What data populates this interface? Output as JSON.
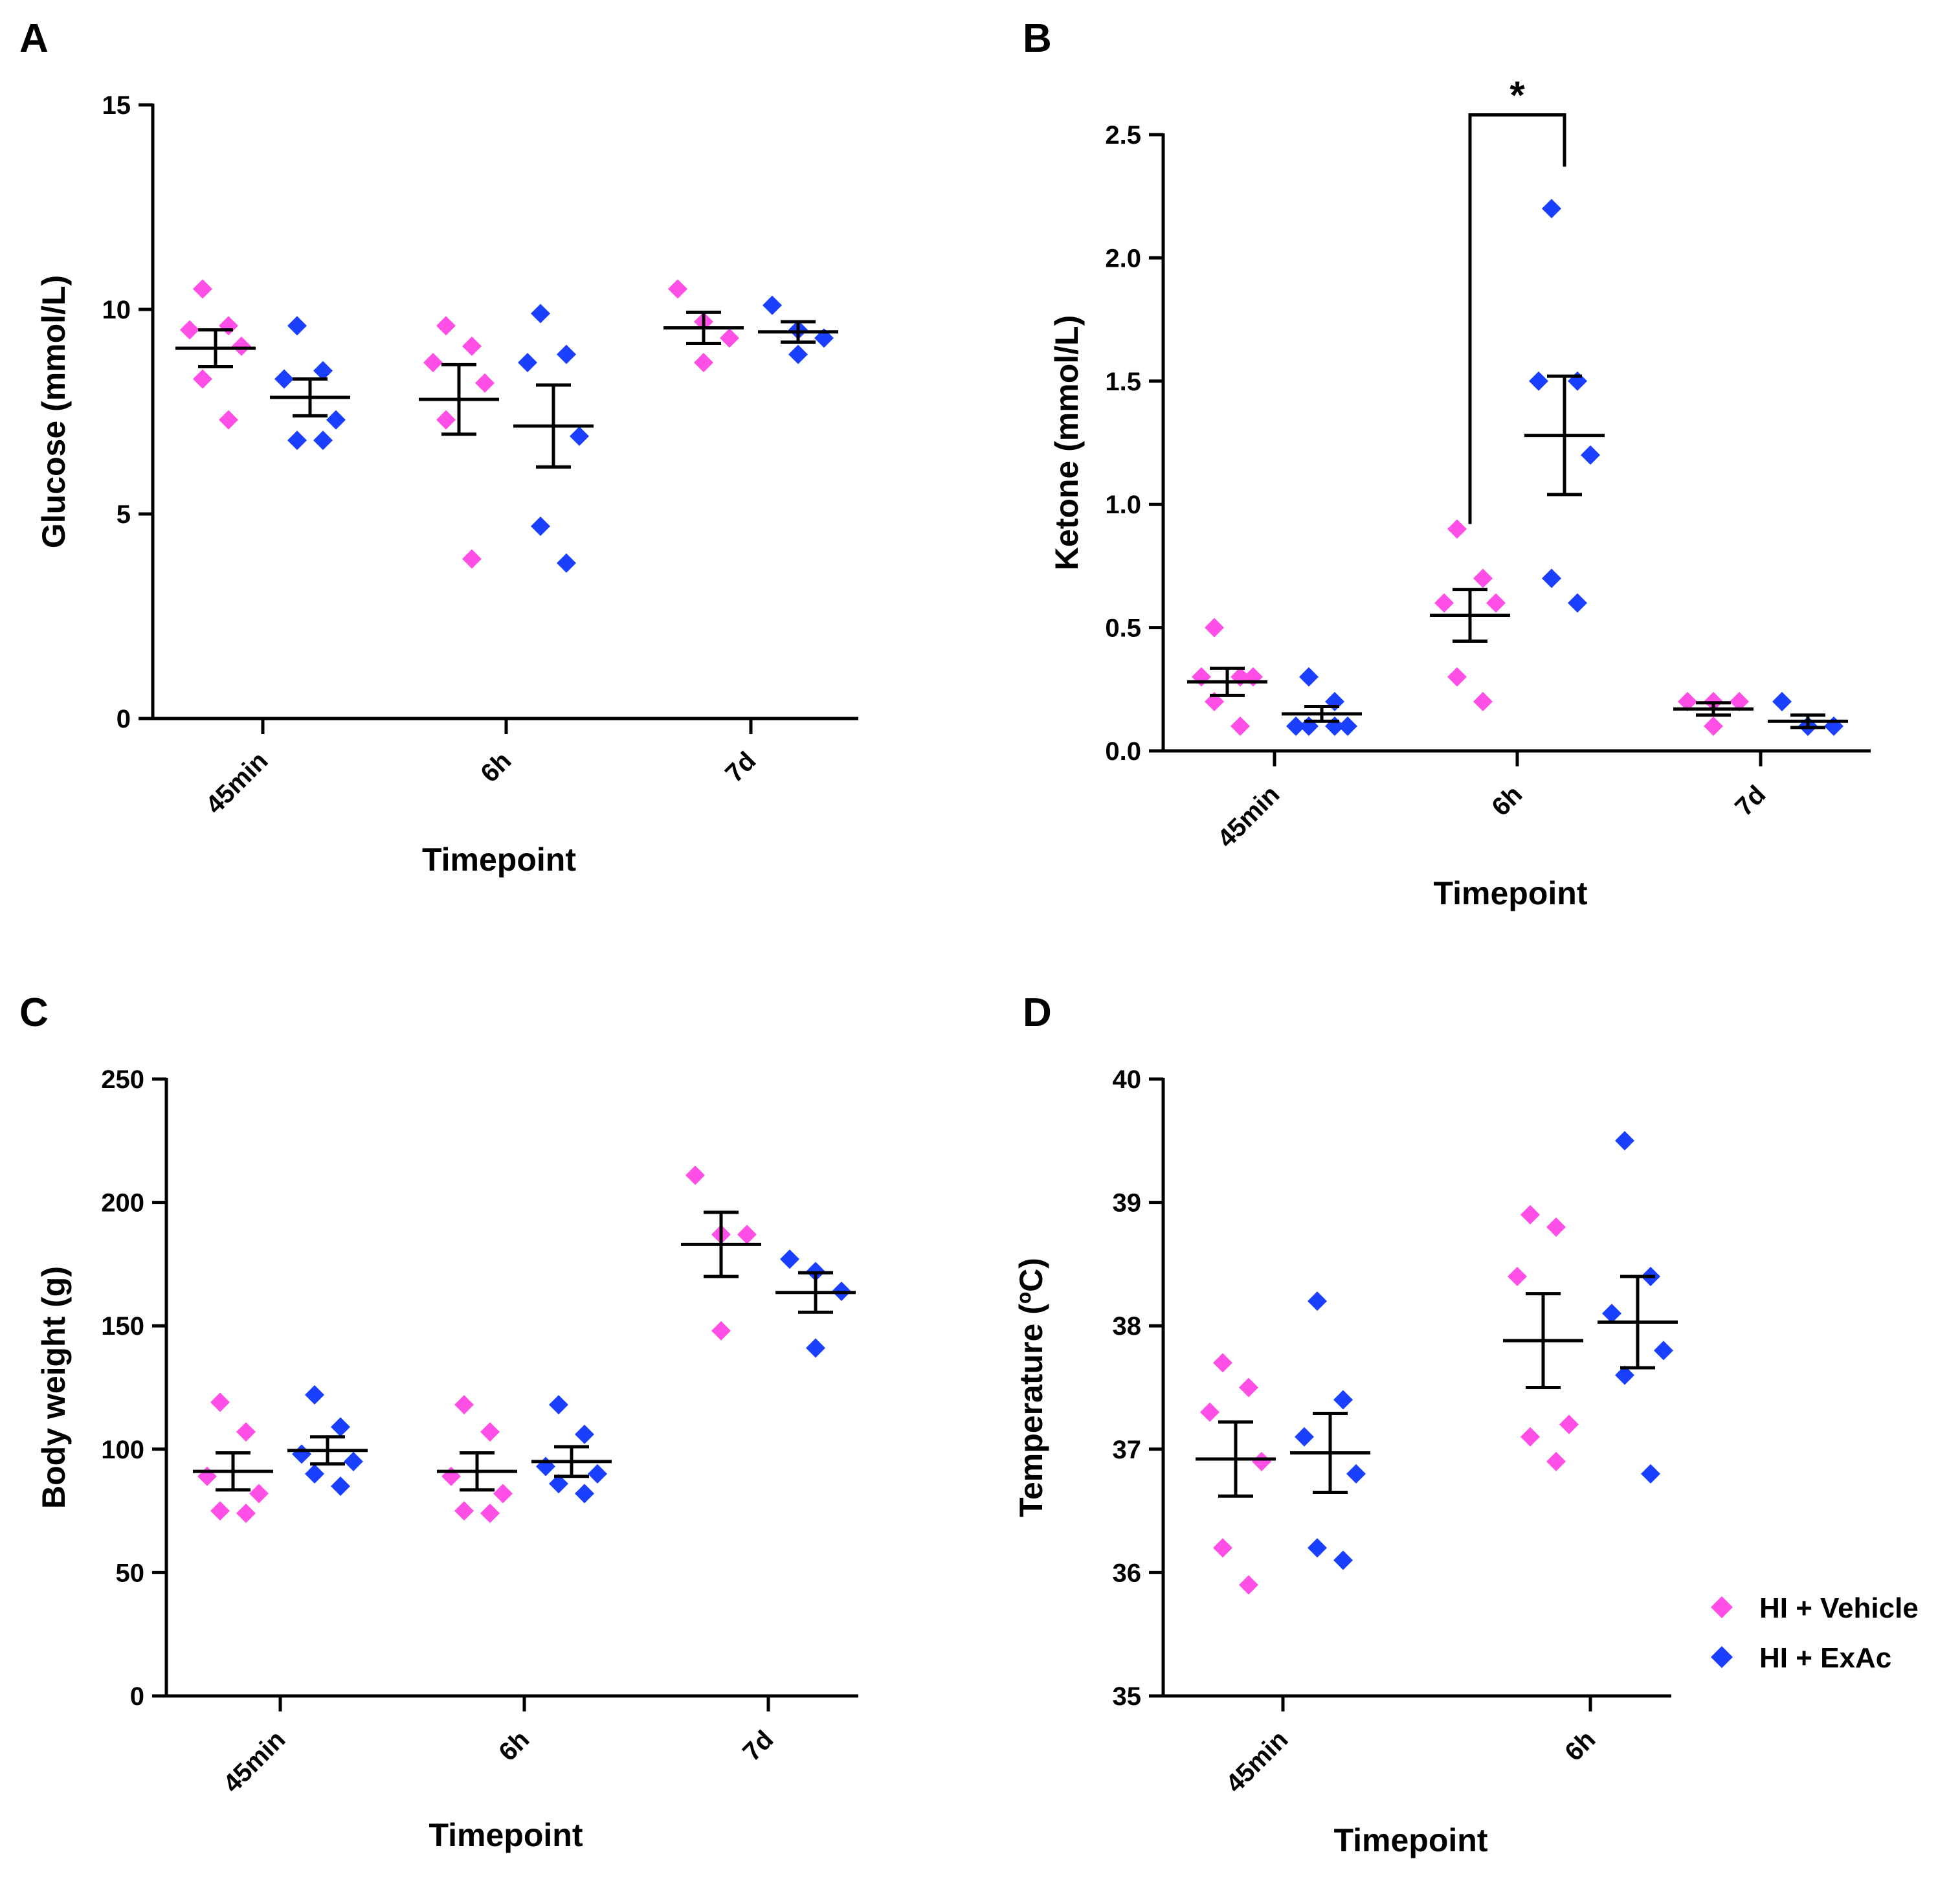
{
  "colors": {
    "vehicle": "#ff4fe6",
    "exac": "#1a3fff",
    "axis": "#000000"
  },
  "legend": {
    "items": [
      {
        "label": "HI + Vehicle",
        "color": "#ff4fe6",
        "icon": "diamond-icon"
      },
      {
        "label": "HI + ExAc",
        "color": "#1a3fff",
        "icon": "diamond-icon"
      }
    ]
  },
  "chart_data": [
    {
      "id": "A",
      "panel_label": "A",
      "type": "scatter",
      "xlabel": "Timepoint",
      "ylabel": "Glucose (mmol/L)",
      "categories": [
        "45min",
        "6h",
        "7d"
      ],
      "ylim": [
        0,
        15
      ],
      "yticks": [
        0,
        5,
        10,
        15
      ],
      "tick_labels": [
        "0",
        "5",
        "10",
        "15"
      ],
      "series": [
        {
          "name": "HI + Vehicle",
          "color": "#ff4fe6",
          "groups": [
            {
              "category": "45min",
              "points": [
                10.5,
                9.6,
                9.5,
                9.1,
                8.3,
                7.3
              ],
              "mean": 9.05,
              "sem": 0.45
            },
            {
              "category": "6h",
              "points": [
                9.6,
                9.1,
                8.7,
                8.2,
                7.3,
                3.9
              ],
              "mean": 7.8,
              "sem": 0.85
            },
            {
              "category": "7d",
              "points": [
                10.5,
                9.7,
                9.3,
                8.7
              ],
              "mean": 9.55,
              "sem": 0.38
            }
          ]
        },
        {
          "name": "HI + ExAc",
          "color": "#1a3fff",
          "groups": [
            {
              "category": "45min",
              "points": [
                9.6,
                8.5,
                8.3,
                7.3,
                6.8,
                6.8
              ],
              "mean": 7.85,
              "sem": 0.45
            },
            {
              "category": "6h",
              "points": [
                9.9,
                8.9,
                8.7,
                6.9,
                4.7,
                3.8
              ],
              "mean": 7.15,
              "sem": 1.0
            },
            {
              "category": "7d",
              "points": [
                10.1,
                9.5,
                9.3,
                8.9
              ],
              "mean": 9.45,
              "sem": 0.25
            }
          ]
        }
      ]
    },
    {
      "id": "B",
      "panel_label": "B",
      "type": "scatter",
      "xlabel": "Timepoint",
      "ylabel": "Ketone (mmol/L)",
      "categories": [
        "45min",
        "6h",
        "7d"
      ],
      "ylim": [
        0,
        2.5
      ],
      "yticks": [
        0,
        0.5,
        1.0,
        1.5,
        2.0,
        2.5
      ],
      "tick_labels": [
        "0.0",
        "0.5",
        "1.0",
        "1.5",
        "2.0",
        "2.5"
      ],
      "significance": {
        "label": "*",
        "category": "6h"
      },
      "series": [
        {
          "name": "HI + Vehicle",
          "color": "#ff4fe6",
          "groups": [
            {
              "category": "45min",
              "points": [
                0.5,
                0.3,
                0.3,
                0.3,
                0.2,
                0.1
              ],
              "mean": 0.28,
              "sem": 0.055
            },
            {
              "category": "6h",
              "points": [
                0.9,
                0.7,
                0.6,
                0.6,
                0.3,
                0.2
              ],
              "mean": 0.55,
              "sem": 0.105
            },
            {
              "category": "7d",
              "points": [
                0.2,
                0.2,
                0.2,
                0.1
              ],
              "mean": 0.17,
              "sem": 0.025
            }
          ]
        },
        {
          "name": "HI + ExAc",
          "color": "#1a3fff",
          "groups": [
            {
              "category": "45min",
              "points": [
                0.3,
                0.2,
                0.1,
                0.1,
                0.1,
                0.1
              ],
              "mean": 0.15,
              "sem": 0.03
            },
            {
              "category": "6h",
              "points": [
                2.2,
                1.5,
                1.5,
                1.2,
                0.7,
                0.6
              ],
              "mean": 1.28,
              "sem": 0.24
            },
            {
              "category": "7d",
              "points": [
                0.2,
                0.1,
                0.1,
                0.1
              ],
              "mean": 0.12,
              "sem": 0.025
            }
          ]
        }
      ]
    },
    {
      "id": "C",
      "panel_label": "C",
      "type": "scatter",
      "xlabel": "Timepoint",
      "ylabel": "Body weight (g)",
      "categories": [
        "45min",
        "6h",
        "7d"
      ],
      "ylim": [
        0,
        250
      ],
      "yticks": [
        0,
        50,
        100,
        150,
        200,
        250
      ],
      "tick_labels": [
        "0",
        "50",
        "100",
        "150",
        "200",
        "250"
      ],
      "series": [
        {
          "name": "HI + Vehicle",
          "color": "#ff4fe6",
          "groups": [
            {
              "category": "45min",
              "points": [
                119,
                107,
                89,
                82,
                75,
                74
              ],
              "mean": 91,
              "sem": 7.5
            },
            {
              "category": "6h",
              "points": [
                118,
                107,
                89,
                82,
                75,
                74
              ],
              "mean": 91,
              "sem": 7.5
            },
            {
              "category": "7d",
              "points": [
                211,
                187,
                187,
                148
              ],
              "mean": 183,
              "sem": 13
            }
          ]
        },
        {
          "name": "HI + ExAc",
          "color": "#1a3fff",
          "groups": [
            {
              "category": "45min",
              "points": [
                122,
                109,
                98,
                95,
                90,
                85
              ],
              "mean": 99.5,
              "sem": 5.5
            },
            {
              "category": "6h",
              "points": [
                118,
                106,
                93,
                90,
                86,
                82
              ],
              "mean": 95,
              "sem": 6
            },
            {
              "category": "7d",
              "points": [
                177,
                172,
                164,
                141
              ],
              "mean": 163.5,
              "sem": 8
            }
          ]
        }
      ]
    },
    {
      "id": "D",
      "panel_label": "D",
      "type": "scatter",
      "xlabel": "Timepoint",
      "ylabel": "Temperature (ºC)",
      "categories": [
        "45min",
        "6h"
      ],
      "ylim": [
        35,
        40
      ],
      "yticks": [
        35,
        36,
        37,
        38,
        39,
        40
      ],
      "tick_labels": [
        "35",
        "36",
        "37",
        "38",
        "39",
        "40"
      ],
      "series": [
        {
          "name": "HI + Vehicle",
          "color": "#ff4fe6",
          "groups": [
            {
              "category": "45min",
              "points": [
                37.7,
                37.5,
                37.3,
                36.9,
                36.2,
                35.9
              ],
              "mean": 36.92,
              "sem": 0.3
            },
            {
              "category": "6h",
              "points": [
                38.9,
                38.8,
                38.4,
                37.2,
                37.1,
                36.9
              ],
              "mean": 37.88,
              "sem": 0.38
            }
          ]
        },
        {
          "name": "HI + ExAc",
          "color": "#1a3fff",
          "groups": [
            {
              "category": "45min",
              "points": [
                38.2,
                37.4,
                37.1,
                36.8,
                36.2,
                36.1
              ],
              "mean": 36.97,
              "sem": 0.32
            },
            {
              "category": "6h",
              "points": [
                39.5,
                38.4,
                38.1,
                37.8,
                37.6,
                36.8
              ],
              "mean": 38.03,
              "sem": 0.37
            }
          ]
        }
      ]
    }
  ]
}
